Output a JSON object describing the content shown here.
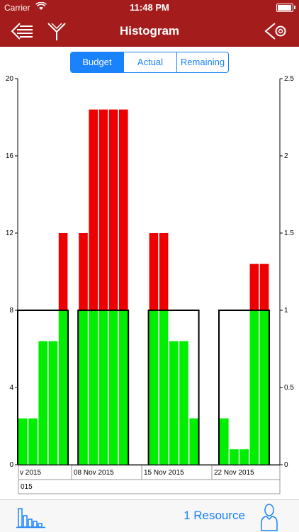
{
  "status_bar": {
    "carrier": "Carrier",
    "time": "11:48 PM"
  },
  "nav": {
    "title": "Histogram",
    "icons": [
      "menu-back-icon",
      "filter-icon",
      "settings-eye-icon"
    ]
  },
  "segmented": {
    "items": [
      "Budget",
      "Actual",
      "Remaining"
    ],
    "selected": "Budget"
  },
  "bottom_bar": {
    "resource_label": "1 Resource",
    "icons": [
      "histogram-icon",
      "person-icon"
    ]
  },
  "colors": {
    "bar_base": "#00ee00",
    "bar_over": "#ee0000",
    "accent": "#1a82fb",
    "nav_bg": "#a51c1c",
    "limit_line": "#000000"
  },
  "chart_data": {
    "type": "bar",
    "left_axis": {
      "ticks": [
        0,
        4,
        8,
        12,
        16,
        20
      ],
      "ylim": [
        0,
        20
      ]
    },
    "right_axis": {
      "ticks": [
        0,
        0.5,
        1,
        1.5,
        2,
        2.5
      ],
      "ylim": [
        0,
        2.5
      ]
    },
    "limit": 8,
    "bars": [
      2.4,
      2.4,
      6.4,
      6.4,
      12,
      null,
      12,
      18.4,
      18.4,
      18.4,
      18.4,
      null,
      null,
      12,
      12,
      6.4,
      6.4,
      2.4,
      null,
      null,
      2.4,
      0.8,
      0.8,
      10.4,
      10.4
    ],
    "limit_groups": [
      [
        0,
        4
      ],
      [
        6,
        10
      ],
      [
        13,
        17
      ],
      [
        20,
        24
      ]
    ],
    "week_labels": [
      "v 2015",
      "08 Nov 2015",
      "15 Nov 2015",
      "22 Nov 2015"
    ],
    "month_labels": [
      "015"
    ]
  }
}
